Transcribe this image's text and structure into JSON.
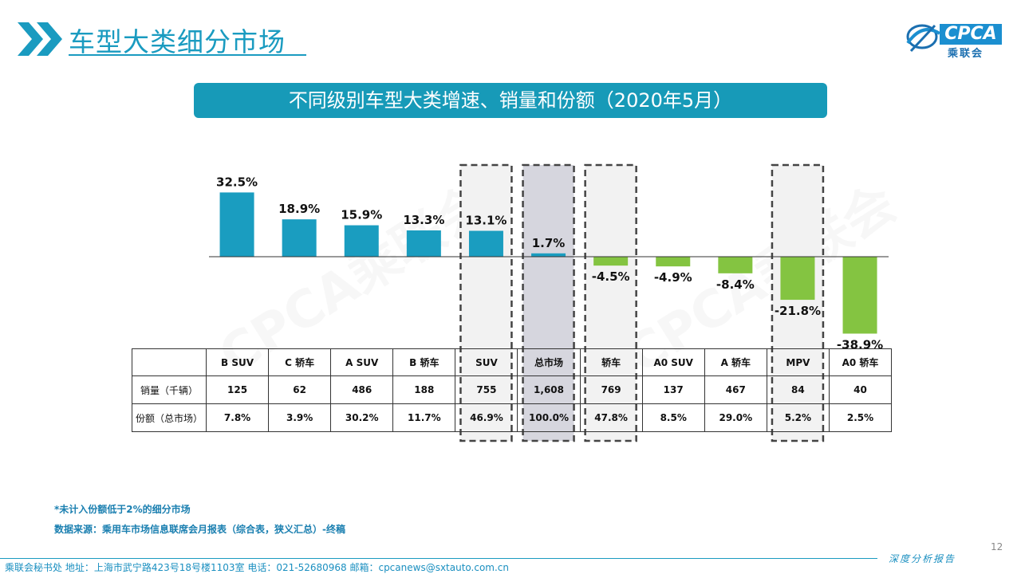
{
  "header": {
    "title": "车型大类细分市场",
    "logo_brand": "CPCA",
    "logo_cn": "乘联会",
    "watermark": "CPCA乘联会"
  },
  "banner": {
    "title": "不同级别车型大类增速、销量和份额（2020年5月）"
  },
  "chart_data": {
    "type": "bar",
    "title": "不同级别车型大类增速、销量和份额（2020年5月）",
    "categories": [
      "B SUV",
      "C 轿车",
      "A SUV",
      "B 轿车",
      "SUV",
      "总市场",
      "轿车",
      "A0 SUV",
      "A 轿车",
      "MPV",
      "A0 轿车"
    ],
    "values": [
      32.5,
      18.9,
      15.9,
      13.3,
      13.1,
      1.7,
      -4.5,
      -4.9,
      -8.4,
      -21.8,
      -38.9
    ],
    "labels": [
      "32.5%",
      "18.9%",
      "15.9%",
      "13.3%",
      "13.1%",
      "1.7%",
      "-4.5%",
      "-4.9%",
      "-8.4%",
      "-21.8%",
      "-38.9%"
    ],
    "unit": "%",
    "highlighted": [
      "SUV",
      "总市场",
      "轿车",
      "MPV"
    ],
    "colors": {
      "positive": "#1a9dc0",
      "negative": "#84c441",
      "highlight_bg": "#f2f2f2",
      "total_bg": "#d6d6de"
    },
    "ylim": [
      -40,
      35
    ],
    "grid": false
  },
  "table": {
    "columns": [
      "B SUV",
      "C 轿车",
      "A SUV",
      "B 轿车",
      "SUV",
      "总市场",
      "轿车",
      "A0 SUV",
      "A 轿车",
      "MPV",
      "A0 轿车"
    ],
    "rows": [
      {
        "label": "销量（千辆）",
        "values": [
          "125",
          "62",
          "486",
          "188",
          "755",
          "1,608",
          "769",
          "137",
          "467",
          "84",
          "40"
        ]
      },
      {
        "label": "份额（总市场）",
        "values": [
          "7.8%",
          "3.9%",
          "30.2%",
          "11.7%",
          "46.9%",
          "100.0%",
          "47.8%",
          "8.5%",
          "29.0%",
          "5.2%",
          "2.5%"
        ]
      }
    ]
  },
  "notes": {
    "note1": "*未计入份额低于2%的细分市场",
    "note2": "数据来源：乘用车市场信息联席会月报表（综合表，狭义汇总）-终稿"
  },
  "footer": {
    "address": "乘联会秘书处   地址：上海市武宁路423号18号楼1103室  电话：021-52680968   邮箱：cpcanews@sxtauto.com.cn",
    "report": "深度分析报告",
    "page": "12"
  }
}
